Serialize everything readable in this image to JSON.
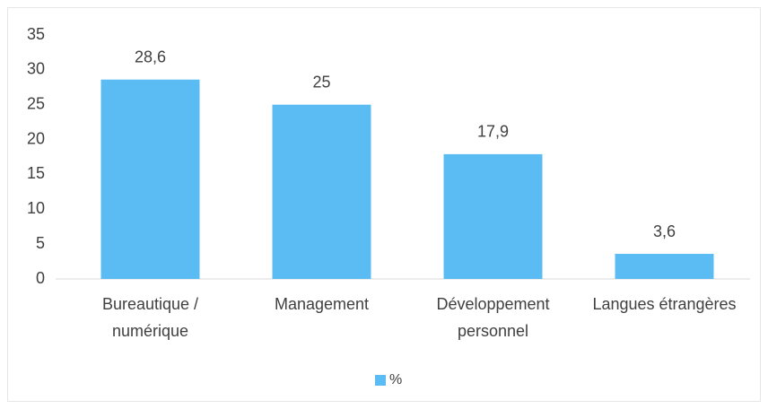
{
  "chart_data": {
    "type": "bar",
    "categories": [
      "Bureautique / numérique",
      "Management",
      "Développement personnel",
      "Langues étrangères"
    ],
    "series": [
      {
        "name": "%",
        "color": "#5bbcf4",
        "values": [
          28.6,
          25,
          17.9,
          3.6
        ],
        "value_labels": [
          "28,6",
          "25",
          "17,9",
          "3,6"
        ]
      }
    ],
    "ylim": [
      0,
      35
    ],
    "yticks": [
      0,
      5,
      10,
      15,
      20,
      25,
      30,
      35
    ],
    "grid": false,
    "legend": "bottom"
  }
}
